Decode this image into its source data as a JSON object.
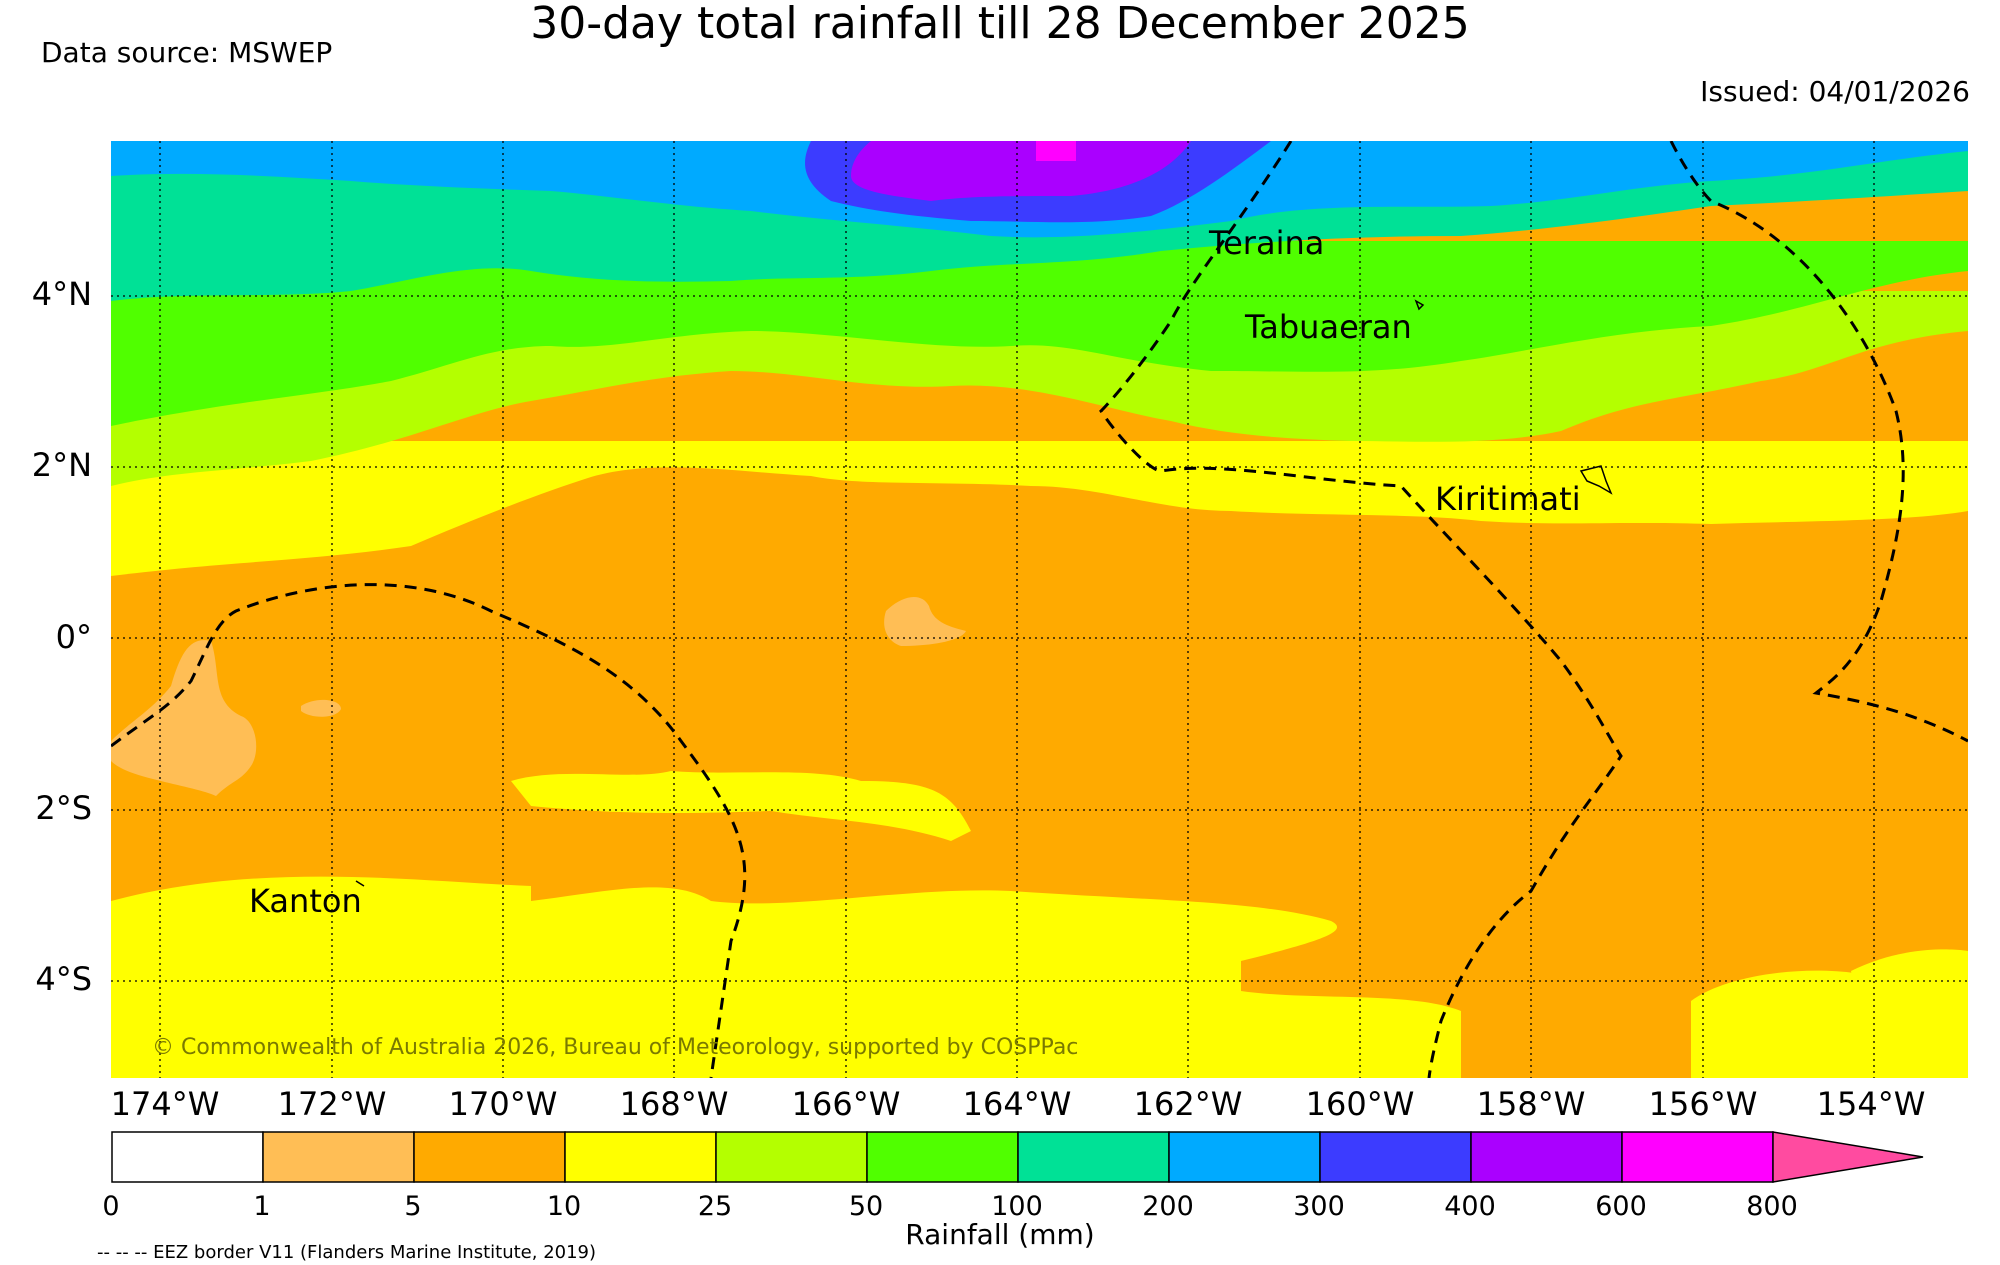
{
  "title": "30-day total rainfall till 28 December 2025",
  "data_source": "Data source: MSWEP",
  "issued": "Issued: 04/01/2026",
  "copyright": "© Commonwealth of Australia 2026, Bureau of Meteorology, supported by COSPPac",
  "y_ticks": [
    "4°N",
    "2°N",
    "0°",
    "2°S",
    "4°S"
  ],
  "x_ticks": [
    "174°W",
    "172°W",
    "170°W",
    "168°W",
    "166°W",
    "164°W",
    "162°W",
    "160°W",
    "158°W",
    "156°W",
    "154°W"
  ],
  "places": {
    "teraina": "Teraina",
    "tabuaeran": "Tabuaeran",
    "kiritimati": "Kiritimati",
    "kanton": "Kanton"
  },
  "colorbar": {
    "title": "Rainfall (mm)",
    "bins": [
      "0",
      "1",
      "5",
      "10",
      "25",
      "50",
      "100",
      "200",
      "300",
      "400",
      "600",
      "800"
    ],
    "colors": [
      "#ffffff",
      "#ffbe55",
      "#ffaa00",
      "#ffff00",
      "#b4ff00",
      "#50ff00",
      "#00e196",
      "#00aaff",
      "#3c3cff",
      "#aa00ff",
      "#ff00ff",
      "#ff4ba0"
    ]
  },
  "eez_note": "-- -- -- EEZ border V11 (Flanders Marine Institute, 2019)"
}
